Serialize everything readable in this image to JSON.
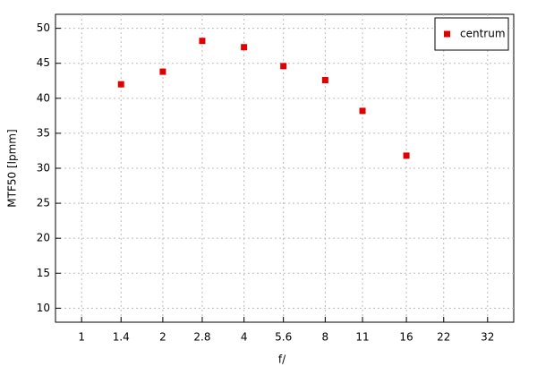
{
  "chart_data": {
    "type": "scatter",
    "x_label": "f/",
    "y_label": "MTF50 [lpmm]",
    "x": [
      1.4,
      2,
      2.8,
      4,
      5.6,
      8,
      11,
      16
    ],
    "series": [
      {
        "name": "centrum",
        "color": "#e00000",
        "values": [
          42,
          43.8,
          48.2,
          47.3,
          44.6,
          42.6,
          38.2,
          31.8
        ]
      }
    ],
    "xscale": "log",
    "xlim": [
      0.8,
      40
    ],
    "xticks": [
      1,
      1.4,
      2,
      2.8,
      4,
      5.6,
      8,
      11,
      16,
      22,
      32
    ],
    "ylim": [
      8,
      52
    ],
    "yticks": [
      10,
      15,
      20,
      25,
      30,
      35,
      40,
      45,
      50
    ],
    "grid": true,
    "legend": "top-right"
  }
}
